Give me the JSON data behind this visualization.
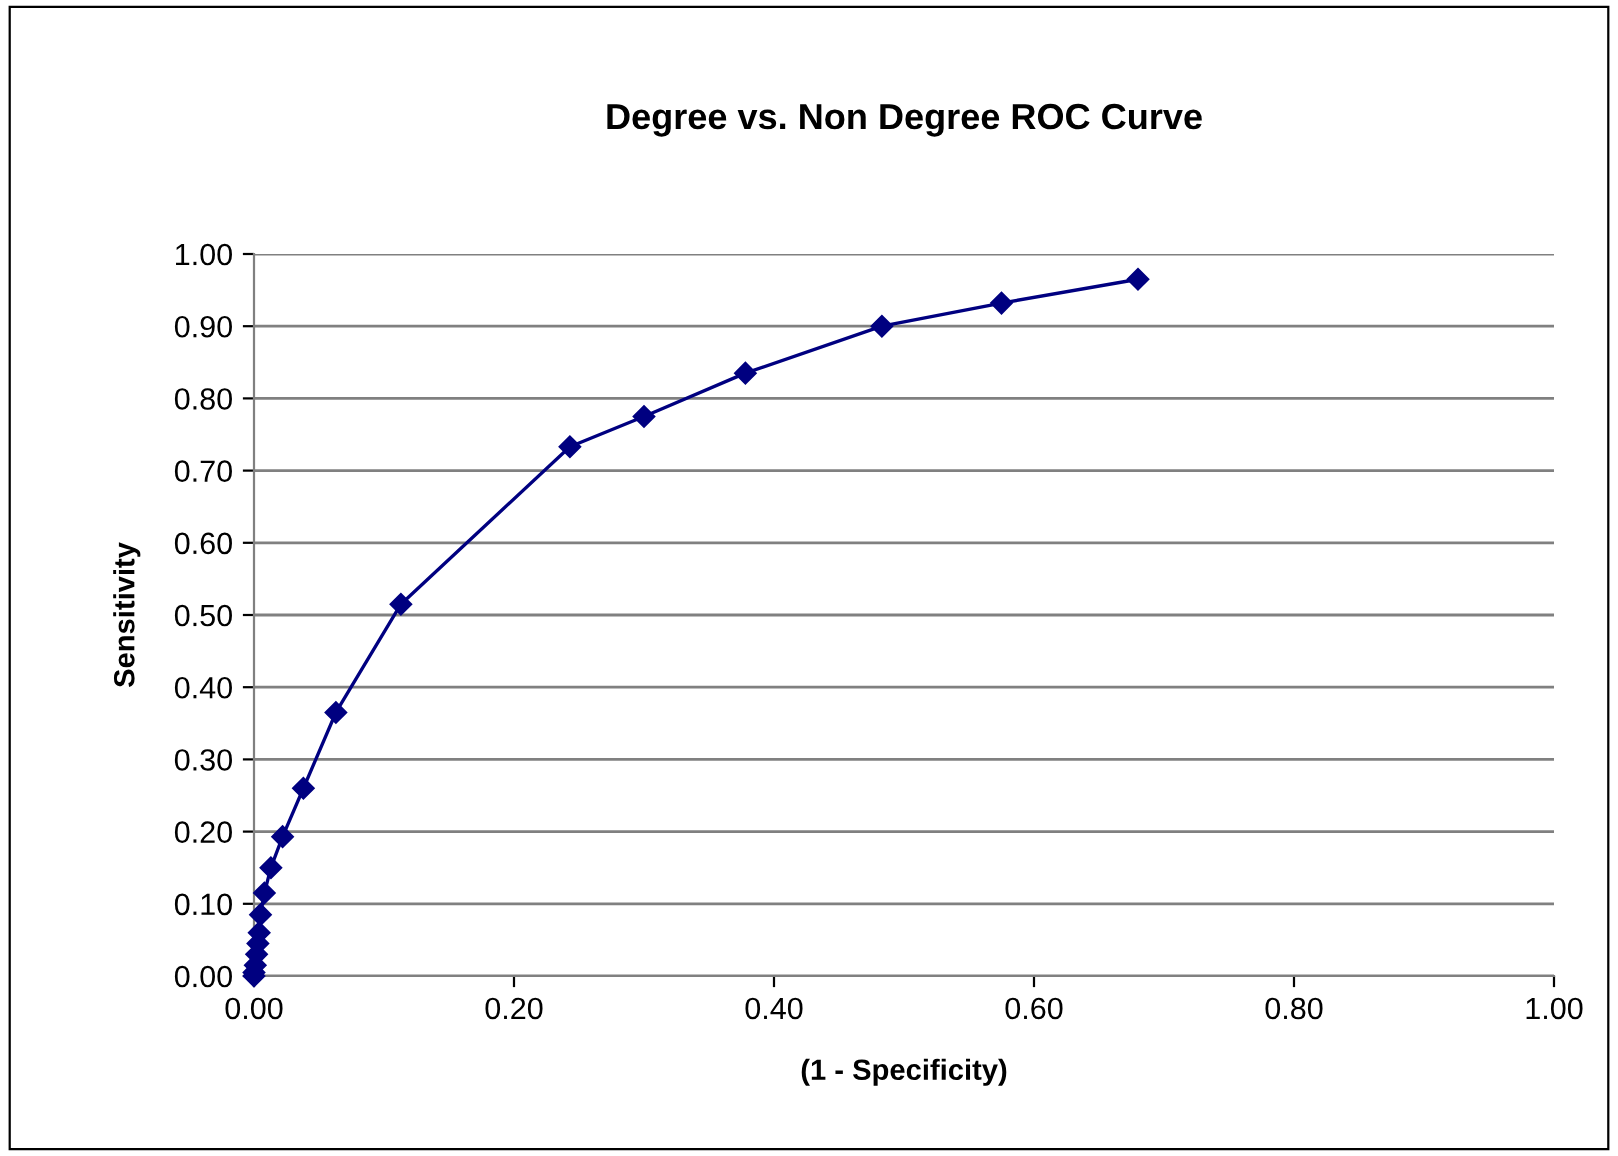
{
  "chart_data": {
    "type": "line",
    "title": "Degree vs. Non Degree ROC Curve",
    "xlabel": "(1 - Specificity)",
    "ylabel": "Sensitivity",
    "series": [
      {
        "color": "#000080",
        "x": [
          0,
          0,
          0.001,
          0.002,
          0.003,
          0.004,
          0.005,
          0.008,
          0.013,
          0.022,
          0.038,
          0.063,
          0.113,
          0.243,
          0.3,
          0.378,
          0.483,
          0.575,
          0.68
        ],
        "values": [
          0,
          0.005,
          0.015,
          0.03,
          0.045,
          0.06,
          0.085,
          0.115,
          0.15,
          0.193,
          0.26,
          0.365,
          0.515,
          0.733,
          0.775,
          0.835,
          0.9,
          0.932,
          0.965
        ]
      }
    ],
    "marker": "diamond",
    "line_style": "solid",
    "grid": "y",
    "xlim": [
      0,
      1
    ],
    "ylim": [
      0,
      1
    ],
    "xticks": [
      {
        "value": 0,
        "label": "0.00"
      },
      {
        "value": 0.2,
        "label": "0.20"
      },
      {
        "value": 0.4,
        "label": "0.40"
      },
      {
        "value": 0.6,
        "label": "0.60"
      },
      {
        "value": 0.8,
        "label": "0.80"
      },
      {
        "value": 1,
        "label": "1.00"
      }
    ],
    "yticks": [
      {
        "value": 0,
        "label": "0.00"
      },
      {
        "value": 0.1,
        "label": "0.10"
      },
      {
        "value": 0.2,
        "label": "0.20"
      },
      {
        "value": 0.3,
        "label": "0.30"
      },
      {
        "value": 0.4,
        "label": "0.40"
      },
      {
        "value": 0.5,
        "label": "0.50"
      },
      {
        "value": 0.6,
        "label": "0.60"
      },
      {
        "value": 0.7,
        "label": "0.70"
      },
      {
        "value": 0.8,
        "label": "0.80"
      },
      {
        "value": 0.9,
        "label": "0.90"
      },
      {
        "value": 1,
        "label": "1.00"
      }
    ]
  }
}
